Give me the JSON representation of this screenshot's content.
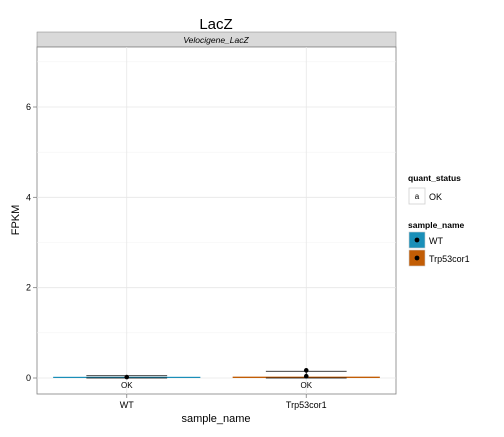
{
  "chart_data": {
    "type": "bar",
    "title": "LacZ",
    "facet_label": "Velocigene_LacZ",
    "xlabel": "sample_name",
    "ylabel": "FPKM",
    "ylim": [
      0,
      7.4
    ],
    "yticks": [
      0,
      2,
      4,
      6
    ],
    "grid": true,
    "legend_position": "right",
    "categories": [
      "WT",
      "Trp53cor1"
    ],
    "series": [
      {
        "name": "sample_name",
        "values": [
          0.01,
          0.03
        ],
        "error_low": [
          0.0,
          0.0
        ],
        "error_high": [
          0.05,
          0.15
        ],
        "points": [
          0.02,
          0.04
        ],
        "point_upper": [
          null,
          0.17
        ],
        "colors": [
          "#1a8fb8",
          "#c25d05"
        ]
      }
    ],
    "annotations": [
      "OK",
      "OK"
    ],
    "legend": {
      "quant_status": {
        "title": "quant_status",
        "key_text": "a",
        "label": "OK"
      },
      "sample_name": {
        "title": "sample_name",
        "items": [
          "WT",
          "Trp53cor1"
        ]
      }
    }
  }
}
